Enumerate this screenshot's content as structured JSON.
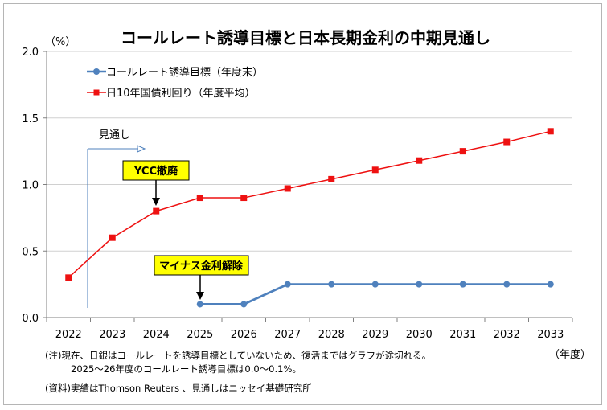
{
  "chart_data": {
    "type": "line",
    "title": "コールレート誘導目標と日本長期金利の中期見通し",
    "y_unit": "（%）",
    "x_unit": "（年度）",
    "ylim": [
      0,
      2.0
    ],
    "yticks": [
      "0.0",
      "0.5",
      "1.0",
      "1.5",
      "2.0"
    ],
    "categories": [
      "2022",
      "2023",
      "2024",
      "2025",
      "2026",
      "2027",
      "2028",
      "2029",
      "2030",
      "2031",
      "2032",
      "2033"
    ],
    "grid": true,
    "legend_position": "top-left",
    "series": [
      {
        "name": "コールレート誘導目標（年度末）",
        "color": "#4f81bd",
        "marker": "circle",
        "values": [
          null,
          null,
          null,
          0.1,
          0.1,
          0.25,
          0.25,
          0.25,
          0.25,
          0.25,
          0.25,
          0.25
        ]
      },
      {
        "name": "日10年国債利回り（年度平均）",
        "color": "#ee1111",
        "marker": "square",
        "values": [
          0.3,
          0.6,
          0.8,
          0.9,
          0.9,
          0.97,
          1.04,
          1.11,
          1.18,
          1.25,
          1.32,
          1.4
        ]
      }
    ],
    "annotations": {
      "forecast": "見通し",
      "ycc": "YCC撤廃",
      "negative": "マイナス金利解除"
    }
  },
  "notes": {
    "line1": "(注)現在、日銀はコールレートを誘導目標としていないため、復活まではグラフが途切れる。",
    "line2": "2025～26年度のコールレート誘導目標は0.0～0.1%。",
    "source": "(資料)実績はThomson Reuters 、見通しはニッセイ基礎研究所"
  }
}
